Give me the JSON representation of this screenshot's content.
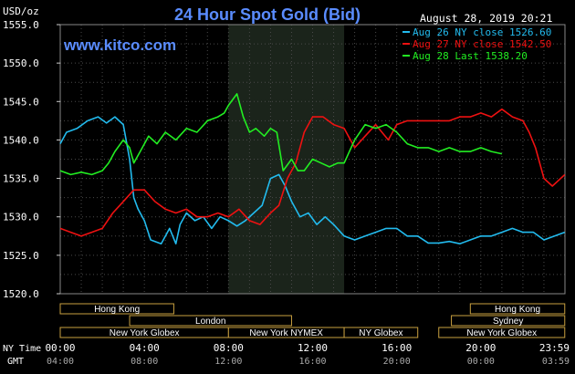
{
  "chart_data": {
    "type": "line",
    "title": "24 Hour Spot Gold (Bid)",
    "ylabel": "USD/oz",
    "timestamp": "August 28, 2019 20:21",
    "watermark": "www.kitco.com",
    "ylim": [
      1520,
      1555
    ],
    "xlim": [
      0,
      24
    ],
    "y_ticks": [
      1555,
      1550,
      1545,
      1540,
      1535,
      1530,
      1525,
      1520
    ],
    "y_tick_labels": [
      "1555.0",
      "1550.0",
      "1545.0",
      "1540.0",
      "1535.0",
      "1530.0",
      "1525.0",
      "1520.0"
    ],
    "x_ticks": [
      0,
      4,
      8,
      12,
      16,
      20,
      24
    ],
    "x_tick_labels_ny": [
      "00:00",
      "04:00",
      "08:00",
      "12:00",
      "16:00",
      "20:00",
      "23:59"
    ],
    "x_tick_labels_gmt": [
      "04:00",
      "08:00",
      "12:00",
      "16:00",
      "20:00",
      "00:00",
      "03:59"
    ],
    "x_row_label_ny": "NY Time",
    "x_row_label_gmt": "GMT",
    "grid": true,
    "legend_position": "top-right",
    "shaded_session": [
      8.0,
      13.5
    ],
    "series": [
      {
        "name": "Aug 26 NY close 1526.60",
        "color": "#22bbee",
        "x": [
          0,
          0.3,
          0.8,
          1.3,
          1.8,
          2.2,
          2.6,
          3.0,
          3.3,
          3.5,
          3.7,
          4.0,
          4.3,
          4.8,
          5.2,
          5.5,
          5.7,
          6.0,
          6.4,
          6.8,
          7.2,
          7.6,
          8.0,
          8.4,
          8.8,
          9.2,
          9.6,
          10.0,
          10.4,
          10.7,
          11.0,
          11.4,
          11.8,
          12.2,
          12.6,
          13.0,
          13.5,
          14.0,
          14.5,
          15.0,
          15.5,
          16.0,
          16.5,
          17.0,
          17.5,
          18.0,
          18.5,
          19.0,
          19.5,
          20.0,
          20.5,
          21.0,
          21.5,
          22.0,
          22.5,
          23.0,
          23.5,
          23.99
        ],
        "values": [
          1539.5,
          1541.0,
          1541.5,
          1542.5,
          1543.0,
          1542.2,
          1543.0,
          1542.0,
          1537.5,
          1532.5,
          1531.0,
          1529.5,
          1527.0,
          1526.5,
          1528.5,
          1526.5,
          1529.0,
          1530.5,
          1529.5,
          1530.0,
          1528.5,
          1530.0,
          1529.5,
          1528.8,
          1529.5,
          1530.5,
          1531.5,
          1535.0,
          1535.5,
          1534.0,
          1532.0,
          1530.0,
          1530.5,
          1529.0,
          1530.0,
          1529.0,
          1527.5,
          1527.0,
          1527.5,
          1528.0,
          1528.5,
          1528.5,
          1527.5,
          1527.5,
          1526.6,
          1526.6,
          1526.8,
          1526.5,
          1527.0,
          1527.5,
          1527.5,
          1528.0,
          1528.5,
          1528.0,
          1528.0,
          1527.0,
          1527.5,
          1528.0
        ]
      },
      {
        "name": "Aug 27 NY close 1542.50",
        "color": "#ee1111",
        "x": [
          0,
          0.5,
          1.0,
          1.5,
          2.0,
          2.5,
          3.0,
          3.5,
          4.0,
          4.5,
          5.0,
          5.5,
          6.0,
          6.5,
          7.0,
          7.5,
          8.0,
          8.5,
          9.0,
          9.5,
          10.0,
          10.4,
          10.8,
          11.2,
          11.6,
          12.0,
          12.5,
          13.0,
          13.5,
          14.0,
          14.5,
          15.0,
          15.3,
          15.6,
          16.0,
          16.5,
          17.0,
          17.5,
          18.0,
          18.5,
          19.0,
          19.5,
          20.0,
          20.5,
          21.0,
          21.5,
          22.0,
          22.3,
          22.6,
          23.0,
          23.4,
          23.99
        ],
        "values": [
          1528.5,
          1528.0,
          1527.5,
          1528.0,
          1528.5,
          1530.5,
          1532.0,
          1533.5,
          1533.5,
          1532.0,
          1531.0,
          1530.5,
          1531.0,
          1530.0,
          1530.0,
          1530.5,
          1530.0,
          1531.0,
          1529.5,
          1529.0,
          1530.5,
          1531.5,
          1535.0,
          1537.0,
          1541.0,
          1543.0,
          1543.0,
          1542.0,
          1541.5,
          1539.0,
          1540.5,
          1542.0,
          1541.0,
          1540.0,
          1542.0,
          1542.5,
          1542.5,
          1542.5,
          1542.5,
          1542.5,
          1543.0,
          1543.0,
          1543.5,
          1543.0,
          1544.0,
          1543.0,
          1542.5,
          1541.0,
          1539.0,
          1535.0,
          1534.0,
          1535.5
        ]
      },
      {
        "name": "Aug 28 Last 1538.20",
        "color": "#22ee22",
        "x": [
          0,
          0.5,
          1.0,
          1.5,
          2.0,
          2.3,
          2.6,
          3.0,
          3.3,
          3.5,
          3.8,
          4.2,
          4.6,
          5.0,
          5.5,
          6.0,
          6.5,
          7.0,
          7.5,
          7.8,
          8.0,
          8.4,
          8.7,
          9.0,
          9.3,
          9.7,
          10.0,
          10.3,
          10.6,
          11.0,
          11.3,
          11.6,
          12.0,
          12.4,
          12.8,
          13.2,
          13.5,
          14.0,
          14.5,
          15.0,
          15.5,
          16.0,
          16.5,
          17.0,
          17.5,
          18.0,
          18.5,
          19.0,
          19.5,
          20.0,
          20.5,
          21.0
        ],
        "values": [
          1536.0,
          1535.5,
          1535.8,
          1535.5,
          1536.0,
          1537.0,
          1538.5,
          1540.0,
          1539.0,
          1537.0,
          1538.5,
          1540.5,
          1539.5,
          1541.0,
          1540.0,
          1541.5,
          1541.0,
          1542.5,
          1543.0,
          1543.5,
          1544.5,
          1546.0,
          1543.0,
          1541.0,
          1541.5,
          1540.5,
          1541.5,
          1541.0,
          1536.0,
          1537.5,
          1536.0,
          1536.0,
          1537.5,
          1537.0,
          1536.5,
          1537.0,
          1537.0,
          1540.0,
          1542.0,
          1541.5,
          1542.0,
          1541.0,
          1539.5,
          1539.0,
          1539.0,
          1538.5,
          1539.0,
          1538.5,
          1538.5,
          1539.0,
          1538.5,
          1538.2
        ]
      }
    ],
    "sessions": [
      {
        "name": "Hong Kong",
        "start": 0.0,
        "end": 5.4,
        "row": 0
      },
      {
        "name": "Hong Kong",
        "start": 19.5,
        "end": 23.99,
        "row": 0
      },
      {
        "name": "London",
        "start": 3.3,
        "end": 11.0,
        "row": 1
      },
      {
        "name": "Sydney",
        "start": 18.6,
        "end": 23.99,
        "row": 1
      },
      {
        "name": "New York Globex",
        "start": 0.0,
        "end": 8.0,
        "row": 2
      },
      {
        "name": "New York NYMEX",
        "start": 8.0,
        "end": 13.5,
        "row": 2
      },
      {
        "name": "NY Globex",
        "start": 13.5,
        "end": 17.0,
        "row": 2
      },
      {
        "name": "New York Globex",
        "start": 18.0,
        "end": 23.99,
        "row": 2
      }
    ]
  }
}
